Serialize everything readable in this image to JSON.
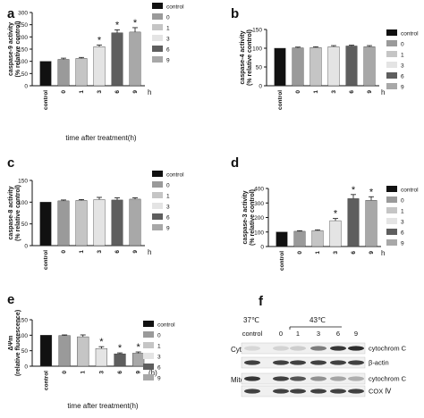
{
  "colors": {
    "control": "#111111",
    "0": "#9a9a9a",
    "1": "#c5c5c5",
    "3": "#e4e4e4",
    "6": "#5e5e5e",
    "9": "#a8a8a8"
  },
  "chart_data": [
    {
      "panel": "a",
      "type": "bar",
      "ylabel": "caspase-9 activity\n(% relative control)",
      "xlabel": "time after treatment(h)",
      "x_unit": "h",
      "categories": [
        "control",
        "0",
        "1",
        "3",
        "6",
        "9"
      ],
      "values": [
        100,
        108,
        112,
        160,
        217,
        220
      ],
      "errors": [
        0,
        5,
        4,
        7,
        12,
        18
      ],
      "significant": [
        false,
        false,
        false,
        true,
        true,
        true
      ],
      "ylim": [
        0,
        300
      ],
      "yticks": [
        0,
        50,
        100,
        150,
        200,
        250,
        300
      ],
      "legend": [
        "control",
        "0",
        "1",
        "3",
        "6",
        "9"
      ]
    },
    {
      "panel": "b",
      "type": "bar",
      "ylabel": "caspase-4 activity\n(% relative control)",
      "xlabel": "",
      "x_unit": "h",
      "categories": [
        "control",
        "0",
        "1",
        "3",
        "6",
        "9"
      ],
      "values": [
        100,
        101,
        102,
        104,
        106,
        104
      ],
      "errors": [
        0,
        2,
        2,
        3,
        2,
        3
      ],
      "significant": [
        false,
        false,
        false,
        false,
        false,
        false
      ],
      "ylim": [
        0,
        150
      ],
      "yticks": [
        0,
        50,
        100,
        150
      ],
      "legend": [
        "control",
        "0",
        "1",
        "3",
        "6",
        "9"
      ]
    },
    {
      "panel": "c",
      "type": "bar",
      "ylabel": "caspase-8 activity\n(% relative control)",
      "xlabel": "",
      "x_unit": "h",
      "categories": [
        "control",
        "0",
        "1",
        "3",
        "6",
        "9"
      ],
      "values": [
        100,
        103,
        104,
        106,
        105,
        107
      ],
      "errors": [
        0,
        2,
        2,
        5,
        5,
        3
      ],
      "significant": [
        false,
        false,
        false,
        false,
        false,
        false
      ],
      "ylim": [
        0,
        150
      ],
      "yticks": [
        0,
        50,
        100,
        150
      ],
      "legend": [
        "control",
        "0",
        "1",
        "3",
        "6",
        "9"
      ]
    },
    {
      "panel": "d",
      "type": "bar",
      "ylabel": "caspase-3 activity\n(% relative control)",
      "xlabel": "",
      "x_unit": "h",
      "categories": [
        "control",
        "0",
        "1",
        "3",
        "6",
        "9"
      ],
      "values": [
        100,
        105,
        110,
        178,
        330,
        318
      ],
      "errors": [
        0,
        4,
        5,
        15,
        28,
        25
      ],
      "significant": [
        false,
        false,
        false,
        true,
        true,
        true
      ],
      "ylim": [
        0,
        400
      ],
      "yticks": [
        0,
        100,
        200,
        300,
        400
      ],
      "legend": [
        "control",
        "0",
        "1",
        "3",
        "6",
        "9"
      ]
    },
    {
      "panel": "e",
      "type": "bar",
      "ylabel": "ΔΨm\n(relative fluorescence)",
      "xlabel": "time after treatment(h)",
      "x_unit": "(h)",
      "categories": [
        "control",
        "0",
        "1",
        "3",
        "6",
        "9"
      ],
      "values": [
        100,
        99,
        95,
        57,
        40,
        42
      ],
      "errors": [
        0,
        2,
        6,
        6,
        3,
        4
      ],
      "significant": [
        false,
        false,
        false,
        true,
        true,
        true
      ],
      "ylim": [
        0,
        150
      ],
      "yticks": [
        0,
        50,
        100,
        150
      ],
      "legend": [
        "control",
        "0",
        "1",
        "3",
        "6",
        "9"
      ]
    }
  ],
  "blot": {
    "panel": "f",
    "temp_control": "37℃",
    "temp_treat": "43℃",
    "lanes": [
      "control",
      "0",
      "1",
      "3",
      "6",
      "9"
    ],
    "groups": [
      {
        "label": "Cyto",
        "bands": [
          {
            "label": "cytochrom C",
            "intensity": [
              0.1,
              0.12,
              0.15,
              0.55,
              0.9,
              0.95
            ]
          },
          {
            "label": "β-actin",
            "intensity": [
              0.85,
              0.85,
              0.85,
              0.85,
              0.85,
              0.85
            ]
          }
        ]
      },
      {
        "label": "Mito",
        "bands": [
          {
            "label": "cytochrom C",
            "intensity": [
              0.9,
              0.85,
              0.75,
              0.45,
              0.35,
              0.3
            ]
          },
          {
            "label": "COX Ⅳ",
            "intensity": [
              0.85,
              0.85,
              0.85,
              0.85,
              0.85,
              0.85
            ]
          }
        ]
      }
    ]
  }
}
